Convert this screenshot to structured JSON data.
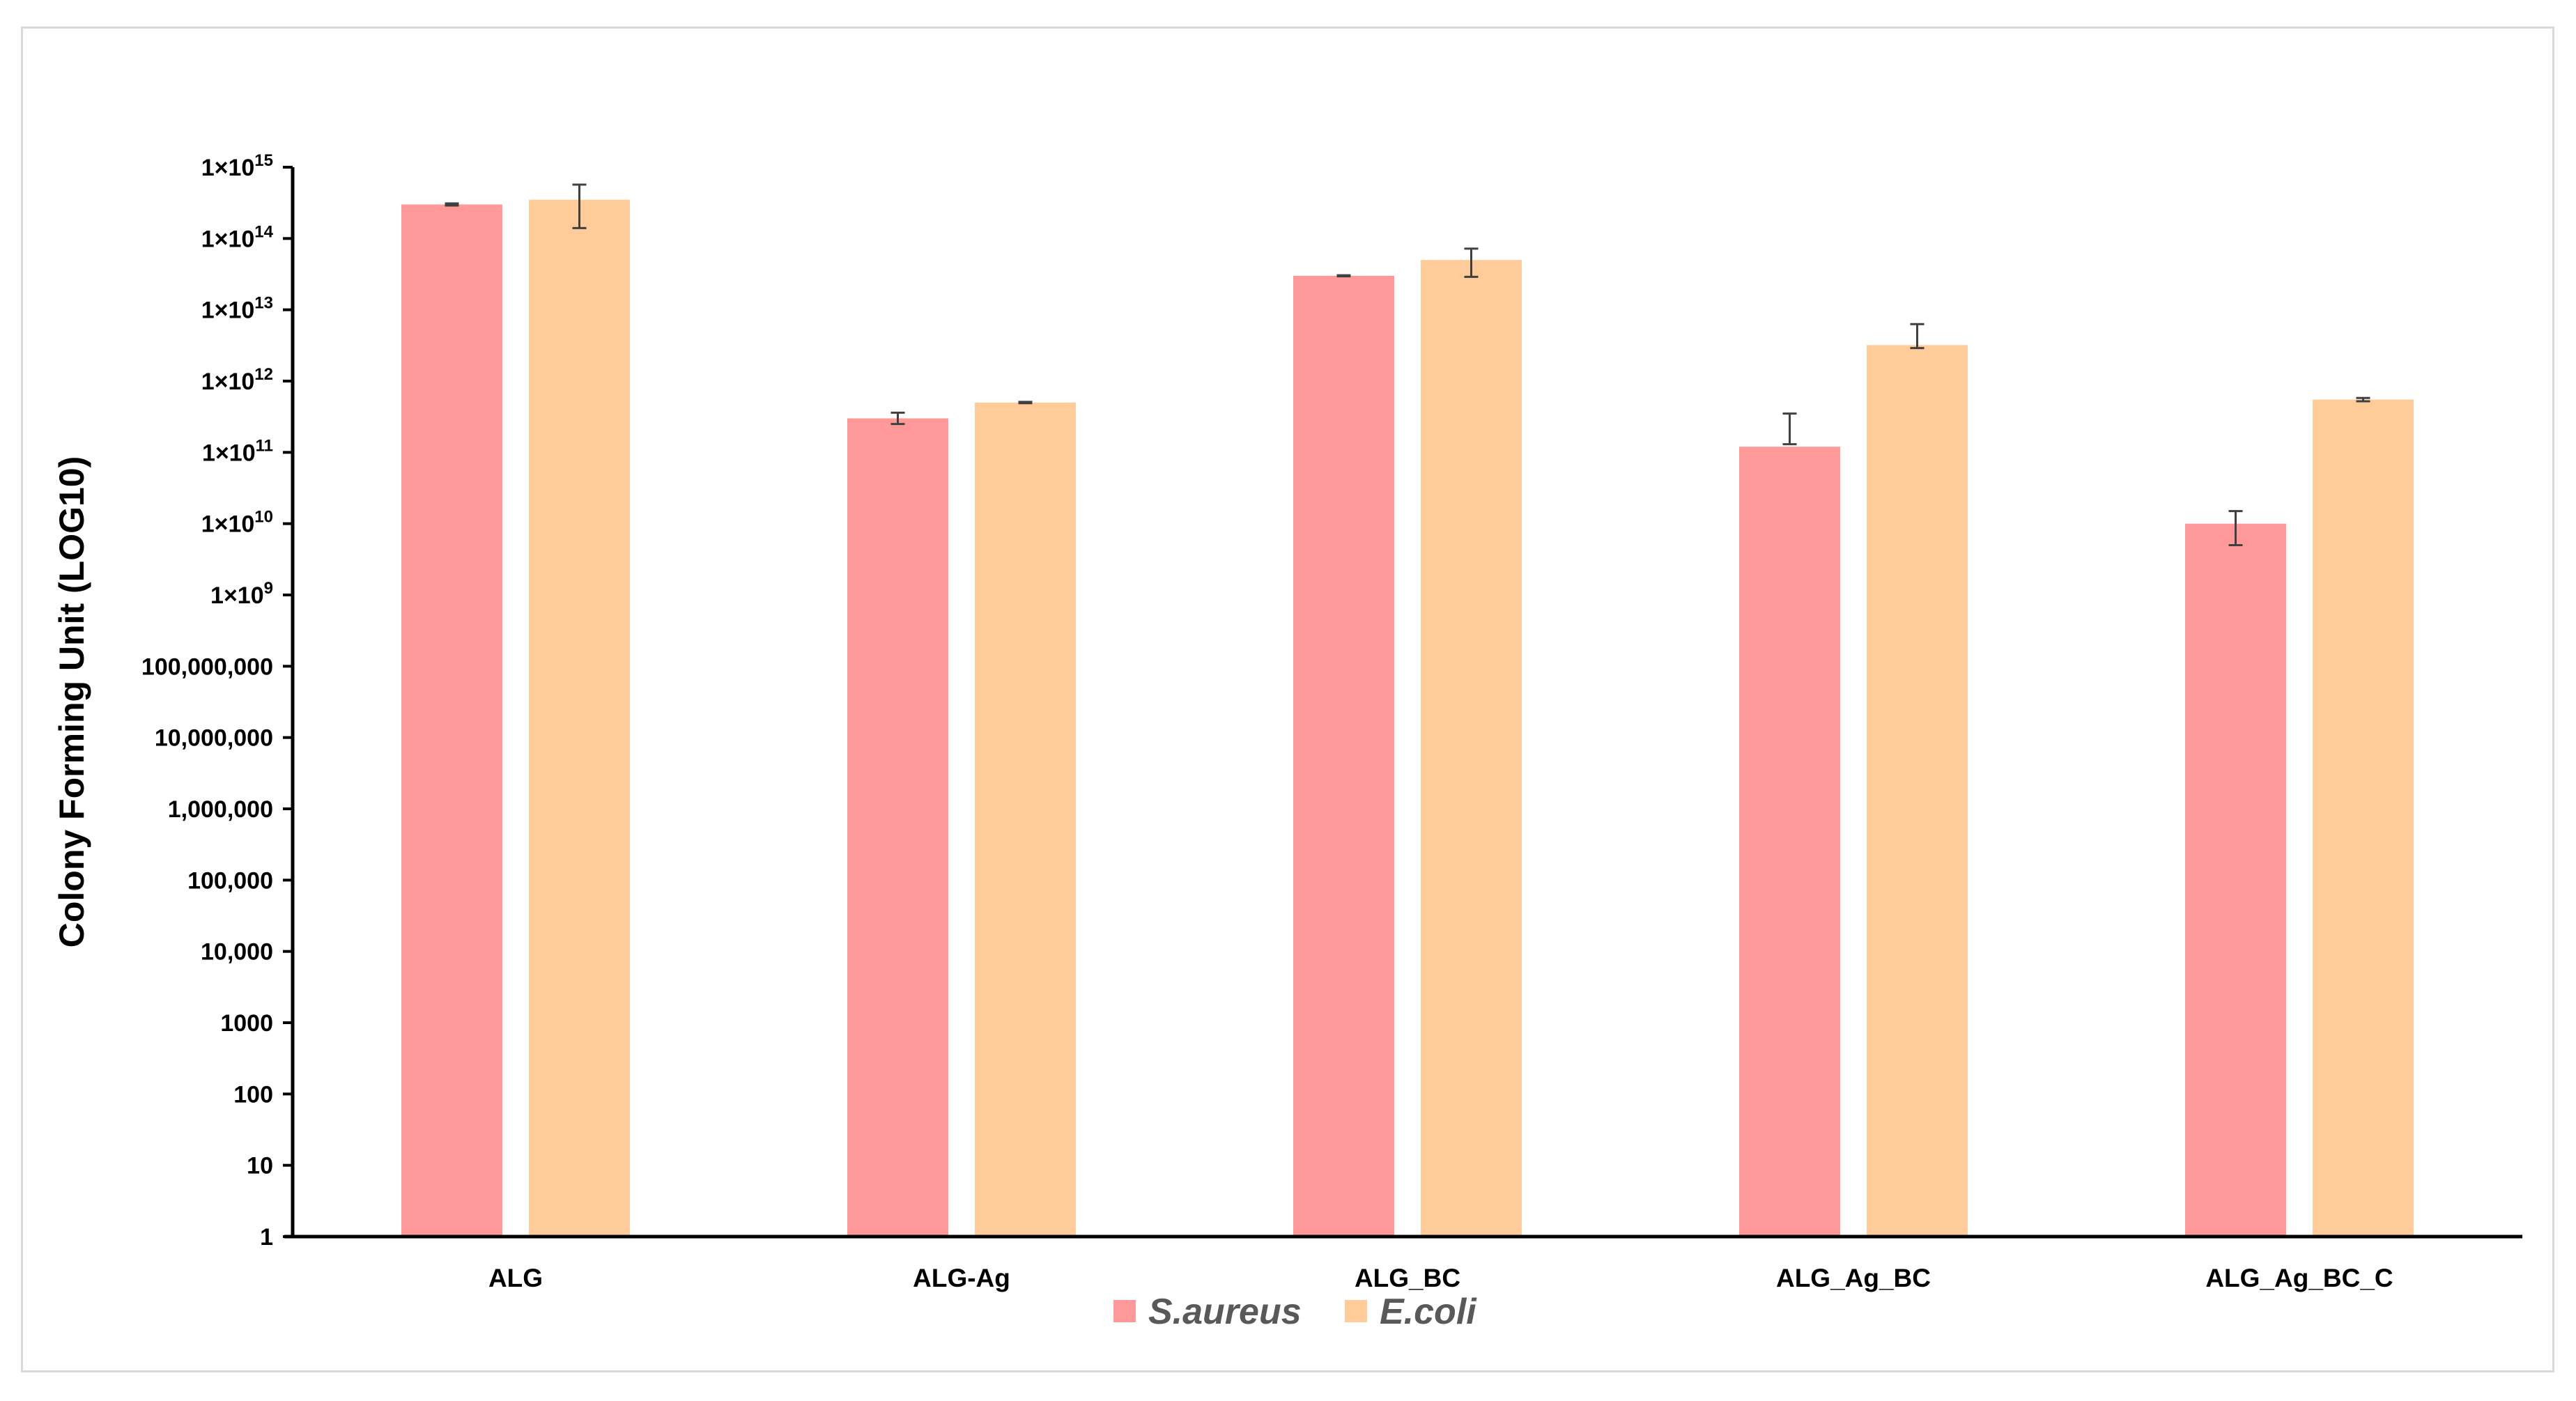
{
  "chart_data": {
    "type": "bar",
    "title": "",
    "xlabel": "",
    "ylabel": "Colony Forming Unit (LOG10)",
    "yscale": "log10",
    "ylim": [
      1,
      1000000000000000.0
    ],
    "grid": false,
    "legend_position": "bottom-center",
    "categories": [
      "ALG",
      "ALG-Ag",
      "ALG_BC",
      "ALG_Ag_BC",
      "ALG_Ag_BC_C"
    ],
    "yticks": [
      {
        "value": 1,
        "label": "1",
        "sup": ""
      },
      {
        "value": 10,
        "label": "10",
        "sup": ""
      },
      {
        "value": 100,
        "label": "100",
        "sup": ""
      },
      {
        "value": 1000,
        "label": "1000",
        "sup": ""
      },
      {
        "value": 10000,
        "label": "10,000",
        "sup": ""
      },
      {
        "value": 100000,
        "label": "100,000",
        "sup": ""
      },
      {
        "value": 1000000,
        "label": "1,000,000",
        "sup": ""
      },
      {
        "value": 10000000,
        "label": "10,000,000",
        "sup": ""
      },
      {
        "value": 100000000,
        "label": "100,000,000",
        "sup": ""
      },
      {
        "value": 1000000000.0,
        "label": "1×10",
        "sup": "9"
      },
      {
        "value": 10000000000.0,
        "label": "1×10",
        "sup": "10"
      },
      {
        "value": 100000000000.0,
        "label": "1×10",
        "sup": "11"
      },
      {
        "value": 1000000000000.0,
        "label": "1×10",
        "sup": "12"
      },
      {
        "value": 10000000000000.0,
        "label": "1×10",
        "sup": "13"
      },
      {
        "value": 100000000000000.0,
        "label": "1×10",
        "sup": "14"
      },
      {
        "value": 1000000000000000.0,
        "label": "1×10",
        "sup": "15"
      }
    ],
    "series": [
      {
        "name": "S.aureus",
        "color": "#FF9999",
        "values": [
          300000000000000.0,
          300000000000.0,
          30000000000000.0,
          120000000000.0,
          10000000000.0
        ],
        "err_low": [
          290000000000000.0,
          250000000000.0,
          29500000000000.0,
          130000000000.0,
          5000000000.0
        ],
        "err_high": [
          310000000000000.0,
          360000000000.0,
          30500000000000.0,
          350000000000.0,
          15000000000.0
        ]
      },
      {
        "name": "E.coli",
        "color": "#FFCC99",
        "values": [
          350000000000000.0,
          500000000000.0,
          50000000000000.0,
          3200000000000.0,
          550000000000.0
        ],
        "err_low": [
          140000000000000.0,
          490000000000.0,
          29000000000000.0,
          2900000000000.0,
          520000000000.0
        ],
        "err_high": [
          570000000000000.0,
          510000000000.0,
          72000000000000.0,
          6300000000000.0,
          580000000000.0
        ]
      }
    ]
  }
}
